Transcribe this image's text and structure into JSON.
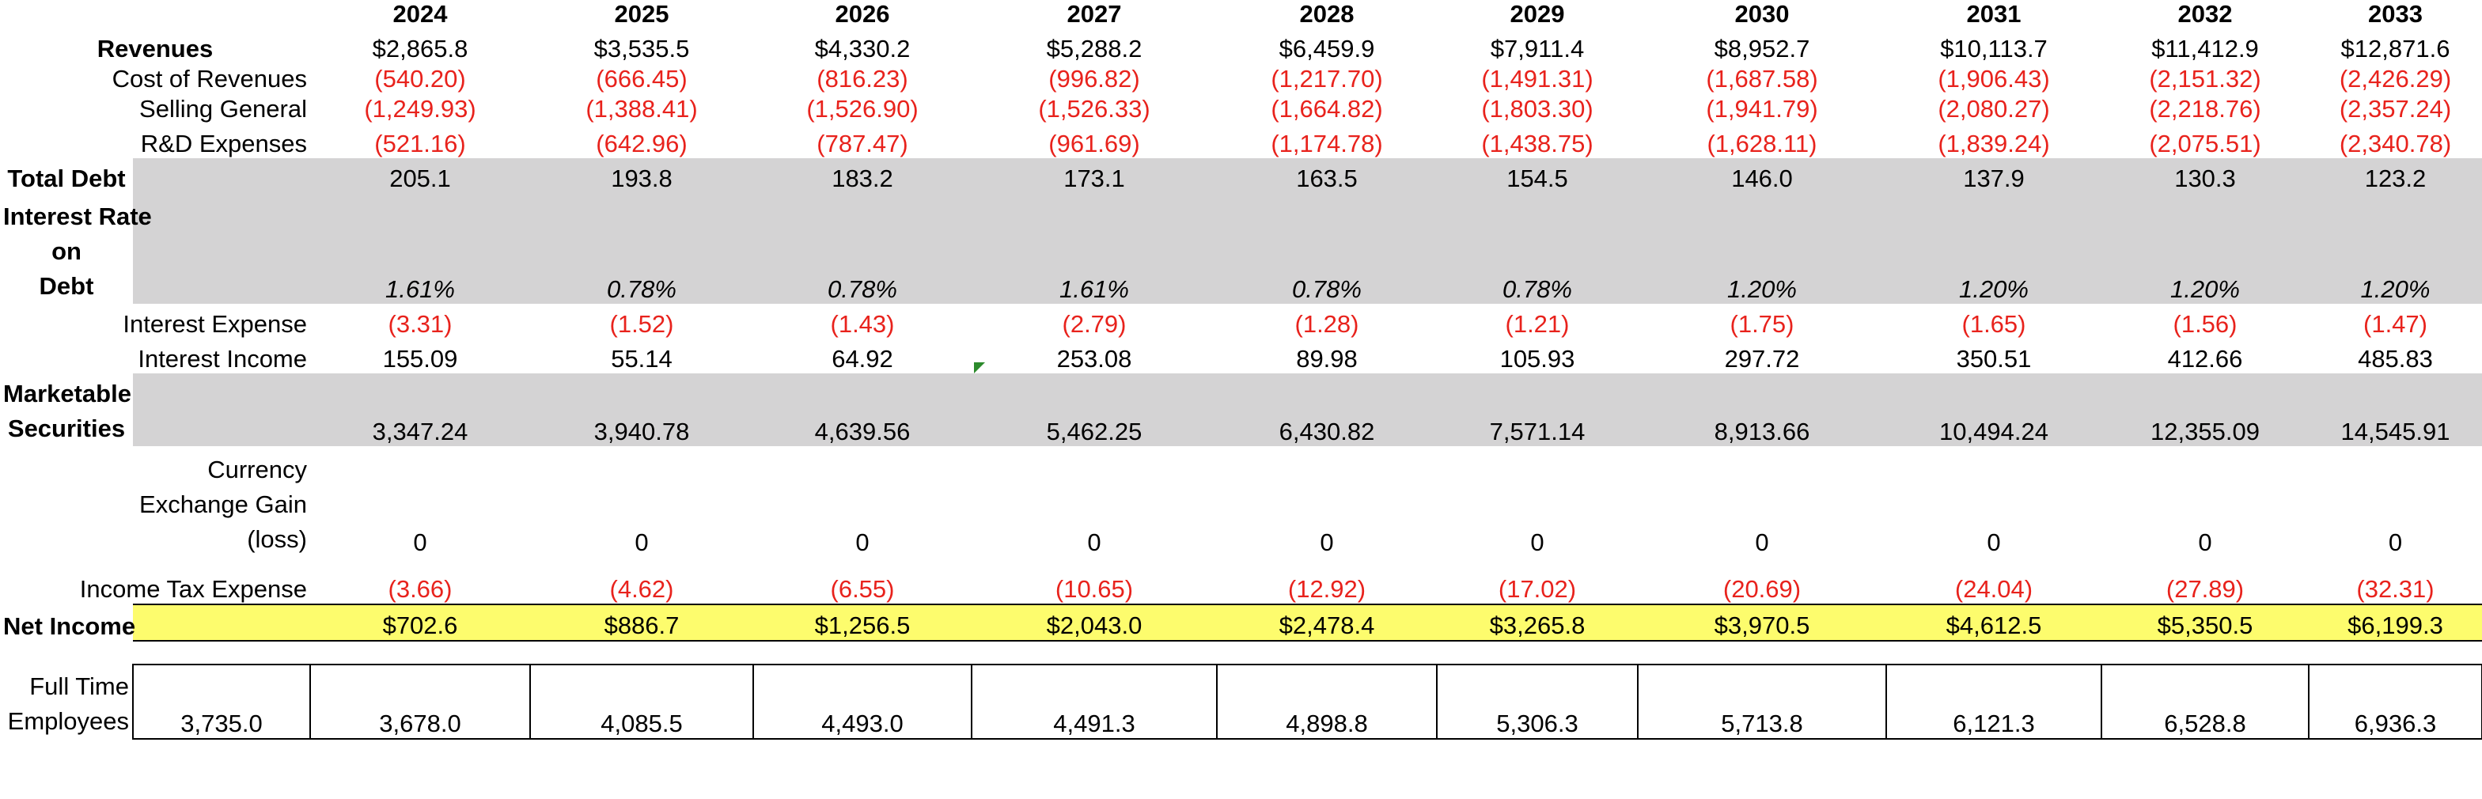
{
  "years": [
    "2024",
    "2025",
    "2026",
    "2027",
    "2028",
    "2029",
    "2030",
    "2031",
    "2032",
    "2033"
  ],
  "rows": {
    "revenues": {
      "label": "Revenues",
      "values": [
        "$2,865.8",
        "$3,535.5",
        "$4,330.2",
        "$5,288.2",
        "$6,459.9",
        "$7,911.4",
        "$8,952.7",
        "$10,113.7",
        "$11,412.9",
        "$12,871.6"
      ]
    },
    "cost_of_revenues": {
      "label": "Cost of Revenues",
      "values": [
        "(540.20)",
        "(666.45)",
        "(816.23)",
        "(996.82)",
        "(1,217.70)",
        "(1,491.31)",
        "(1,687.58)",
        "(1,906.43)",
        "(2,151.32)",
        "(2,426.29)"
      ]
    },
    "selling_general": {
      "label": "Selling General",
      "values": [
        "(1,249.93)",
        "(1,388.41)",
        "(1,526.90)",
        "(1,526.33)",
        "(1,664.82)",
        "(1,803.30)",
        "(1,941.79)",
        "(2,080.27)",
        "(2,218.76)",
        "(2,357.24)"
      ]
    },
    "rd_expenses": {
      "label": "R&D Expenses",
      "values": [
        "(521.16)",
        "(642.96)",
        "(787.47)",
        "(961.69)",
        "(1,174.78)",
        "(1,438.75)",
        "(1,628.11)",
        "(1,839.24)",
        "(2,075.51)",
        "(2,340.78)"
      ]
    },
    "total_debt": {
      "label": "Total Debt",
      "values": [
        "205.1",
        "193.8",
        "183.2",
        "173.1",
        "163.5",
        "154.5",
        "146.0",
        "137.9",
        "130.3",
        "123.2"
      ]
    },
    "interest_rate": {
      "label_lines": [
        "Interest Rate",
        "on",
        "Debt"
      ],
      "values": [
        "1.61%",
        "0.78%",
        "0.78%",
        "1.61%",
        "0.78%",
        "0.78%",
        "1.20%",
        "1.20%",
        "1.20%",
        "1.20%"
      ]
    },
    "interest_expense": {
      "label": "Interest Expense",
      "values": [
        "(3.31)",
        "(1.52)",
        "(1.43)",
        "(2.79)",
        "(1.28)",
        "(1.21)",
        "(1.75)",
        "(1.65)",
        "(1.56)",
        "(1.47)"
      ]
    },
    "interest_income": {
      "label": "Interest Income",
      "values": [
        "155.09",
        "55.14",
        "64.92",
        "253.08",
        "89.98",
        "105.93",
        "297.72",
        "350.51",
        "412.66",
        "485.83"
      ]
    },
    "marketable_securities": {
      "label_lines": [
        "Marketable",
        "Securities"
      ],
      "values": [
        "3,347.24",
        "3,940.78",
        "4,639.56",
        "5,462.25",
        "6,430.82",
        "7,571.14",
        "8,913.66",
        "10,494.24",
        "12,355.09",
        "14,545.91"
      ]
    },
    "currency_exchange": {
      "label_lines": [
        "Currency",
        "Exchange Gain",
        "(loss)"
      ],
      "values": [
        "0",
        "0",
        "0",
        "0",
        "0",
        "0",
        "0",
        "0",
        "0",
        "0"
      ]
    },
    "income_tax": {
      "label": "Income Tax Expense",
      "values": [
        "(3.66)",
        "(4.62)",
        "(6.55)",
        "(10.65)",
        "(12.92)",
        "(17.02)",
        "(20.69)",
        "(24.04)",
        "(27.89)",
        "(32.31)"
      ]
    },
    "net_income": {
      "label": "Net Income",
      "values": [
        "$702.6",
        "$886.7",
        "$1,256.5",
        "$2,043.0",
        "$2,478.4",
        "$3,265.8",
        "$3,970.5",
        "$4,612.5",
        "$5,350.5",
        "$6,199.3"
      ]
    },
    "full_time_employees": {
      "label_lines": [
        "Full Time",
        "Employees"
      ],
      "first_value": "3,735.0",
      "values": [
        "3,678.0",
        "4,085.5",
        "4,493.0",
        "4,491.3",
        "4,898.8",
        "5,306.3",
        "5,713.8",
        "6,121.3",
        "6,528.8",
        "6,936.3"
      ]
    }
  },
  "colors": {
    "negative": "#e8221c",
    "shaded": "#d4d3d4",
    "highlight": "#fdfc6d",
    "comment_marker": "#2c8a2c"
  }
}
